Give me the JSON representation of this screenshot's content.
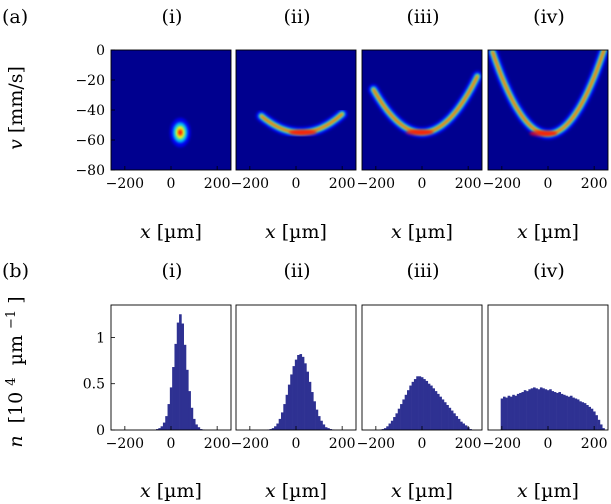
{
  "figure": {
    "panel_labels": [
      "(a)",
      "(b)"
    ],
    "subpanel_titles": [
      "(i)",
      "(ii)",
      "(iii)",
      "(iv)"
    ]
  },
  "chart_data": [
    {
      "type": "heatmap",
      "panel": "(a)",
      "ylabel_var": "v",
      "ylabel_unit": "[mm/s]",
      "xlabel_var": "x",
      "xlabel_unit": "[µm]",
      "xlim": [
        -260,
        260
      ],
      "ylim": [
        -80,
        0
      ],
      "xticks": [
        -200,
        0,
        200
      ],
      "yticks": [
        0,
        -20,
        -40,
        -60,
        -80
      ],
      "colormap": [
        "#00008f",
        "#0000ff",
        "#00ffff",
        "#ffff00",
        "#ff0000"
      ],
      "subplots": [
        {
          "title": "(i)",
          "shape": "blob",
          "center_x": 40,
          "center_v": -55,
          "width_x": 45,
          "width_v": 7
        },
        {
          "title": "(ii)",
          "shape": "arc",
          "curvature": 0.00038,
          "vertex_x": 20,
          "vertex_v": -55,
          "x_range": [
            -150,
            200
          ],
          "peak_x": 30
        },
        {
          "title": "(iii)",
          "shape": "arc",
          "curvature": 0.00065,
          "vertex_x": 0,
          "vertex_v": -55,
          "x_range": [
            -210,
            240
          ],
          "peak_x": -10
        },
        {
          "title": "(iv)",
          "shape": "arc",
          "curvature": 0.00095,
          "vertex_x": 0,
          "vertex_v": -56,
          "x_range": [
            -240,
            250
          ],
          "peak_x": -20
        }
      ]
    },
    {
      "type": "bar",
      "panel": "(b)",
      "ylabel_var": "n",
      "ylabel_unit_pre": "[10",
      "ylabel_exp": "4",
      "ylabel_unit_mid": "µm",
      "ylabel_exp2": "−1",
      "ylabel_unit_post": "]",
      "xlabel_var": "x",
      "xlabel_unit": "[µm]",
      "xlim": [
        -260,
        260
      ],
      "ylim": [
        0,
        1.35
      ],
      "xticks": [
        -200,
        0,
        200
      ],
      "yticks": [
        0,
        0.5,
        1
      ],
      "ytick_labels": [
        "0",
        "0.5",
        "1"
      ],
      "bar_color": "#2e3192",
      "bin_width": 10,
      "subplots": [
        {
          "title": "(i)",
          "x": [
            -60,
            -50,
            -40,
            -30,
            -20,
            -10,
            0,
            10,
            20,
            30,
            40,
            50,
            60,
            70,
            80,
            90,
            100,
            110,
            120,
            130,
            140
          ],
          "values": [
            0.01,
            0.02,
            0.04,
            0.08,
            0.15,
            0.28,
            0.46,
            0.68,
            0.93,
            1.16,
            1.25,
            1.15,
            0.92,
            0.65,
            0.42,
            0.24,
            0.12,
            0.06,
            0.03,
            0.01,
            0.005
          ]
        },
        {
          "title": "(ii)",
          "x": [
            -120,
            -110,
            -100,
            -90,
            -80,
            -70,
            -60,
            -50,
            -40,
            -30,
            -20,
            -10,
            0,
            10,
            20,
            30,
            40,
            50,
            60,
            70,
            80,
            90,
            100,
            110,
            120,
            130,
            140,
            150,
            160
          ],
          "values": [
            0.005,
            0.01,
            0.02,
            0.04,
            0.07,
            0.12,
            0.19,
            0.28,
            0.38,
            0.49,
            0.6,
            0.69,
            0.76,
            0.81,
            0.82,
            0.79,
            0.72,
            0.63,
            0.52,
            0.41,
            0.31,
            0.22,
            0.15,
            0.1,
            0.06,
            0.03,
            0.02,
            0.01,
            0.005
          ]
        },
        {
          "title": "(iii)",
          "x": [
            -180,
            -170,
            -160,
            -150,
            -140,
            -130,
            -120,
            -110,
            -100,
            -90,
            -80,
            -70,
            -60,
            -50,
            -40,
            -30,
            -20,
            -10,
            0,
            10,
            20,
            30,
            40,
            50,
            60,
            70,
            80,
            90,
            100,
            110,
            120,
            130,
            140,
            150,
            160,
            170,
            180,
            190,
            200,
            210
          ],
          "values": [
            0.005,
            0.01,
            0.02,
            0.04,
            0.07,
            0.1,
            0.14,
            0.18,
            0.23,
            0.28,
            0.33,
            0.38,
            0.43,
            0.48,
            0.52,
            0.55,
            0.58,
            0.58,
            0.57,
            0.55,
            0.53,
            0.5,
            0.48,
            0.45,
            0.42,
            0.39,
            0.36,
            0.33,
            0.3,
            0.27,
            0.24,
            0.21,
            0.18,
            0.15,
            0.12,
            0.09,
            0.07,
            0.05,
            0.03,
            0.01
          ]
        },
        {
          "title": "(iv)",
          "x": [
            -200,
            -190,
            -180,
            -170,
            -160,
            -150,
            -140,
            -130,
            -120,
            -110,
            -100,
            -90,
            -80,
            -70,
            -60,
            -50,
            -40,
            -30,
            -20,
            -10,
            0,
            10,
            20,
            30,
            40,
            50,
            60,
            70,
            80,
            90,
            100,
            110,
            120,
            130,
            140,
            150,
            160,
            170,
            180,
            190,
            200,
            210,
            220,
            230,
            240
          ],
          "values": [
            0.34,
            0.36,
            0.35,
            0.37,
            0.36,
            0.38,
            0.37,
            0.39,
            0.4,
            0.41,
            0.43,
            0.42,
            0.44,
            0.45,
            0.46,
            0.45,
            0.44,
            0.46,
            0.45,
            0.44,
            0.43,
            0.44,
            0.42,
            0.41,
            0.4,
            0.41,
            0.39,
            0.38,
            0.37,
            0.36,
            0.37,
            0.35,
            0.34,
            0.33,
            0.31,
            0.3,
            0.29,
            0.27,
            0.25,
            0.23,
            0.2,
            0.16,
            0.11,
            0.06,
            0.02
          ]
        }
      ]
    }
  ]
}
